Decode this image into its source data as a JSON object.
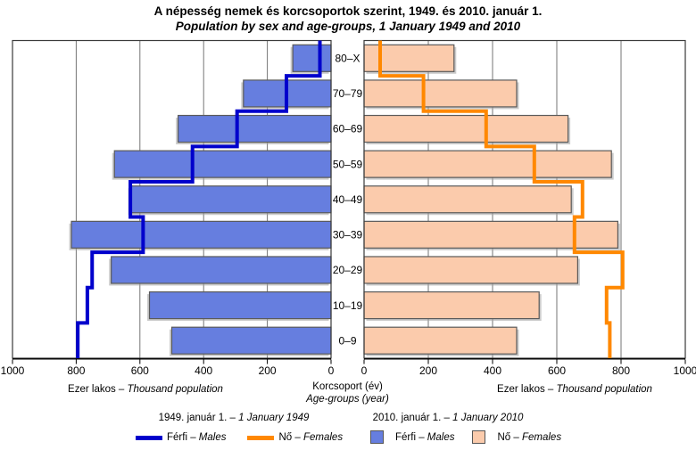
{
  "title": {
    "hu": "A népesség nemek és korcsoportok szerint, 1949. és 2010. január 1.",
    "en": "Population by sex and age-groups, 1 January 1949 and 2010"
  },
  "axis": {
    "left_caption_hu": "Ezer lakos – ",
    "left_caption_en": "Thousand population",
    "right_caption_hu": "Ezer lakos – ",
    "right_caption_en": "Thousand population",
    "center_caption_hu": "Korcsoport (év)",
    "center_caption_en": "Age-groups (year)"
  },
  "legend": {
    "g1949": {
      "title_hu": "1949. január 1. – ",
      "title_en": "1 January 1949",
      "male_hu": "Férfi – ",
      "male_en": "Males",
      "female_hu": "Nő – ",
      "female_en": "Females"
    },
    "g2010": {
      "title_hu": "2010. január 1. – ",
      "title_en": "1 January 2010",
      "male_hu": "Férfi – ",
      "male_en": "Males",
      "female_hu": "Nő – ",
      "female_en": "Females"
    }
  },
  "colors": {
    "male_bar": "#667EDF",
    "female_bar": "#FBCBAC",
    "male_line": "#0000CC",
    "female_line": "#FF8800",
    "bar_border": "#5A5A5A",
    "bar_shadow": "#A0A0A0",
    "grid": "#757575",
    "plot_border": "#3A3A3A",
    "axis_line": "#000000",
    "text": "#000000"
  },
  "chart_data": {
    "type": "bar",
    "subtype": "population_pyramid_with_step_lines",
    "unit": "thousand population",
    "row_order": "top-to-bottom",
    "categories_top_to_bottom": [
      "80–X",
      "70–79",
      "60–69",
      "50–59",
      "40–49",
      "30–39",
      "20–29",
      "10–19",
      "0–9"
    ],
    "series": [
      {
        "name": "Férfi – Males, 1 January 1949",
        "style": "step-line",
        "side": "left",
        "color": "#0000CC",
        "values": [
          35,
          140,
          295,
          435,
          630,
          590,
          750,
          765,
          795
        ]
      },
      {
        "name": "Nő – Females, 1 January 1949",
        "style": "step-line",
        "side": "right",
        "color": "#FF8800",
        "values": [
          50,
          185,
          380,
          530,
          680,
          655,
          805,
          755,
          765
        ]
      },
      {
        "name": "Férfi – Males, 1 January 2010",
        "style": "bar",
        "side": "left",
        "color": "#667EDF",
        "values": [
          120,
          275,
          480,
          680,
          630,
          815,
          690,
          570,
          500
        ]
      },
      {
        "name": "Nő – Females, 1 January 2010",
        "style": "bar",
        "side": "right",
        "color": "#FBCBAC",
        "values": [
          280,
          475,
          635,
          770,
          645,
          790,
          665,
          545,
          475
        ]
      }
    ],
    "x_ticks_left": [
      1000,
      800,
      600,
      400,
      200,
      0
    ],
    "x_ticks_right": [
      0,
      200,
      400,
      600,
      800,
      1000
    ],
    "xlim": [
      0,
      1000
    ],
    "grid": true,
    "legend_position": "bottom"
  }
}
